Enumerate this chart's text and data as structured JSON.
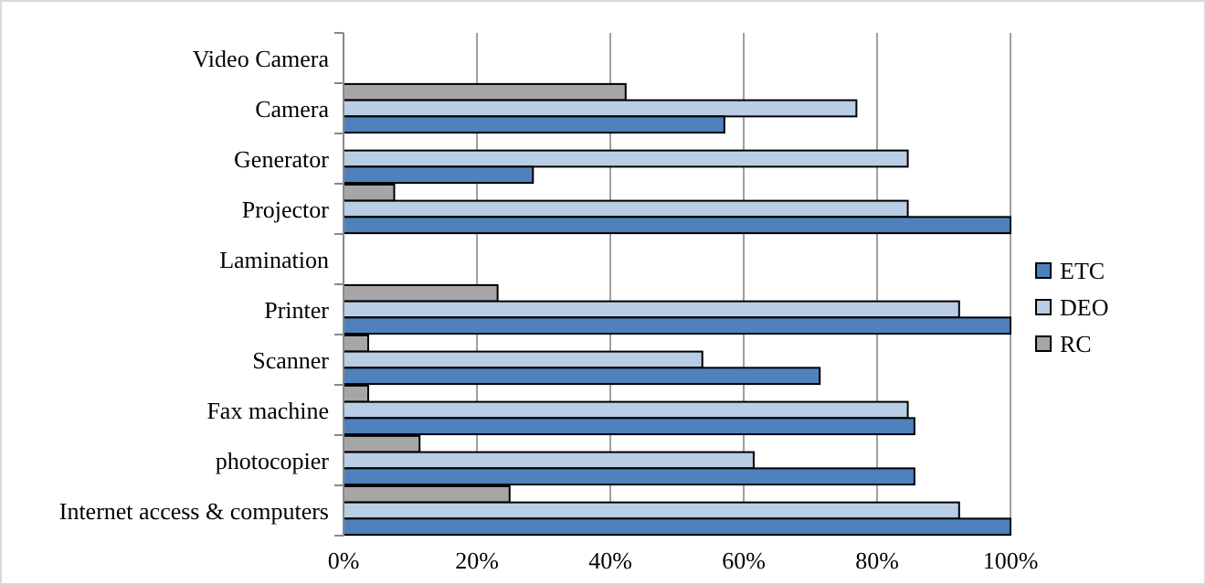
{
  "chart_data": {
    "type": "bar",
    "orientation": "horizontal",
    "categories": [
      "Video Camera",
      "Camera",
      "Generator",
      "Projector",
      "Lamination",
      "Printer",
      "Scanner",
      "Fax machine",
      "photocopier",
      "Internet access & computers"
    ],
    "series": [
      {
        "name": "RC",
        "color": "#a6a6a6",
        "values": [
          0,
          42.3,
          0,
          7.6,
          0,
          23.1,
          3.7,
          3.7,
          11.4,
          24.9
        ]
      },
      {
        "name": "DEO",
        "color": "#b9cde5",
        "values": [
          0,
          76.9,
          84.6,
          84.6,
          0,
          92.3,
          53.8,
          84.6,
          61.5,
          92.3
        ]
      },
      {
        "name": "ETC",
        "color": "#4f81bd",
        "values": [
          0,
          57.1,
          28.4,
          100,
          0,
          100,
          71.4,
          85.6,
          85.6,
          100
        ]
      }
    ],
    "xlim": [
      0,
      100
    ],
    "xticks": [
      {
        "value": 0,
        "label": "0%"
      },
      {
        "value": 20,
        "label": "20%"
      },
      {
        "value": 40,
        "label": "40%"
      },
      {
        "value": 60,
        "label": "60%"
      },
      {
        "value": 80,
        "label": "80%"
      },
      {
        "value": 100,
        "label": "100%"
      }
    ],
    "grid": "x",
    "legend": "right"
  }
}
